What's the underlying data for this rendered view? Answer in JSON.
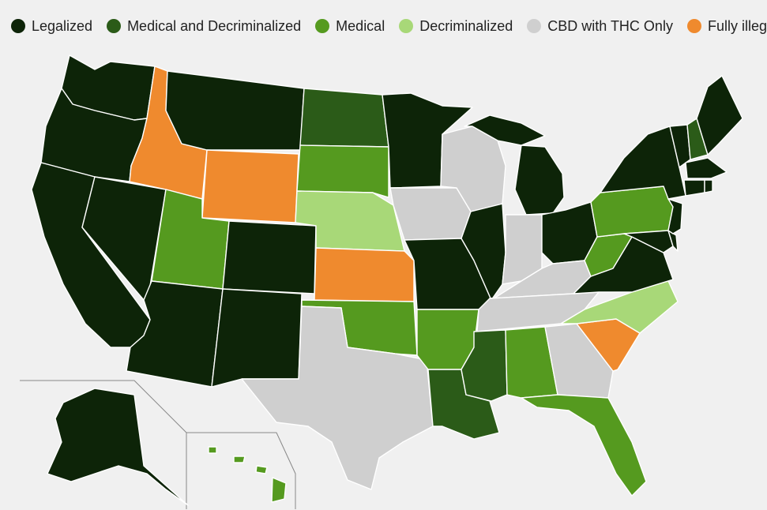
{
  "legend": [
    {
      "key": "legalized",
      "label": "Legalized",
      "color": "#0d2408"
    },
    {
      "key": "medical_decriminalized",
      "label": "Medical and Decriminalized",
      "color": "#2b5b18"
    },
    {
      "key": "medical",
      "label": "Medical",
      "color": "#559a1f"
    },
    {
      "key": "decriminalized",
      "label": "Decriminalized",
      "color": "#a8d878"
    },
    {
      "key": "cbd_thc_only",
      "label": "CBD with THC Only",
      "color": "#cfcfcf"
    },
    {
      "key": "fully_illegal",
      "label": "Fully illegal",
      "color": "#ef8a2e"
    }
  ],
  "states": {
    "WA": "legalized",
    "OR": "legalized",
    "CA": "legalized",
    "NV": "legalized",
    "ID": "fully_illegal",
    "MT": "legalized",
    "WY": "fully_illegal",
    "UT": "medical",
    "AZ": "legalized",
    "CO": "legalized",
    "NM": "legalized",
    "ND": "medical_decriminalized",
    "SD": "medical",
    "NE": "decriminalized",
    "KS": "fully_illegal",
    "OK": "medical",
    "TX": "cbd_thc_only",
    "MN": "legalized",
    "IA": "cbd_thc_only",
    "MO": "legalized",
    "AR": "medical",
    "LA": "medical_decriminalized",
    "WI": "cbd_thc_only",
    "IL": "legalized",
    "MI": "legalized",
    "IN": "cbd_thc_only",
    "OH": "legalized",
    "KY": "cbd_thc_only",
    "TN": "cbd_thc_only",
    "MS": "medical_decriminalized",
    "AL": "medical",
    "GA": "cbd_thc_only",
    "FL": "medical",
    "SC": "fully_illegal",
    "NC": "decriminalized",
    "VA": "legalized",
    "WV": "medical",
    "PA": "medical",
    "NY": "legalized",
    "VT": "legalized",
    "NH": "medical_decriminalized",
    "ME": "legalized",
    "MA": "legalized",
    "CT": "legalized",
    "RI": "legalized",
    "NJ": "legalized",
    "DE": "legalized",
    "MD": "legalized",
    "AK": "legalized",
    "HI": "medical"
  }
}
